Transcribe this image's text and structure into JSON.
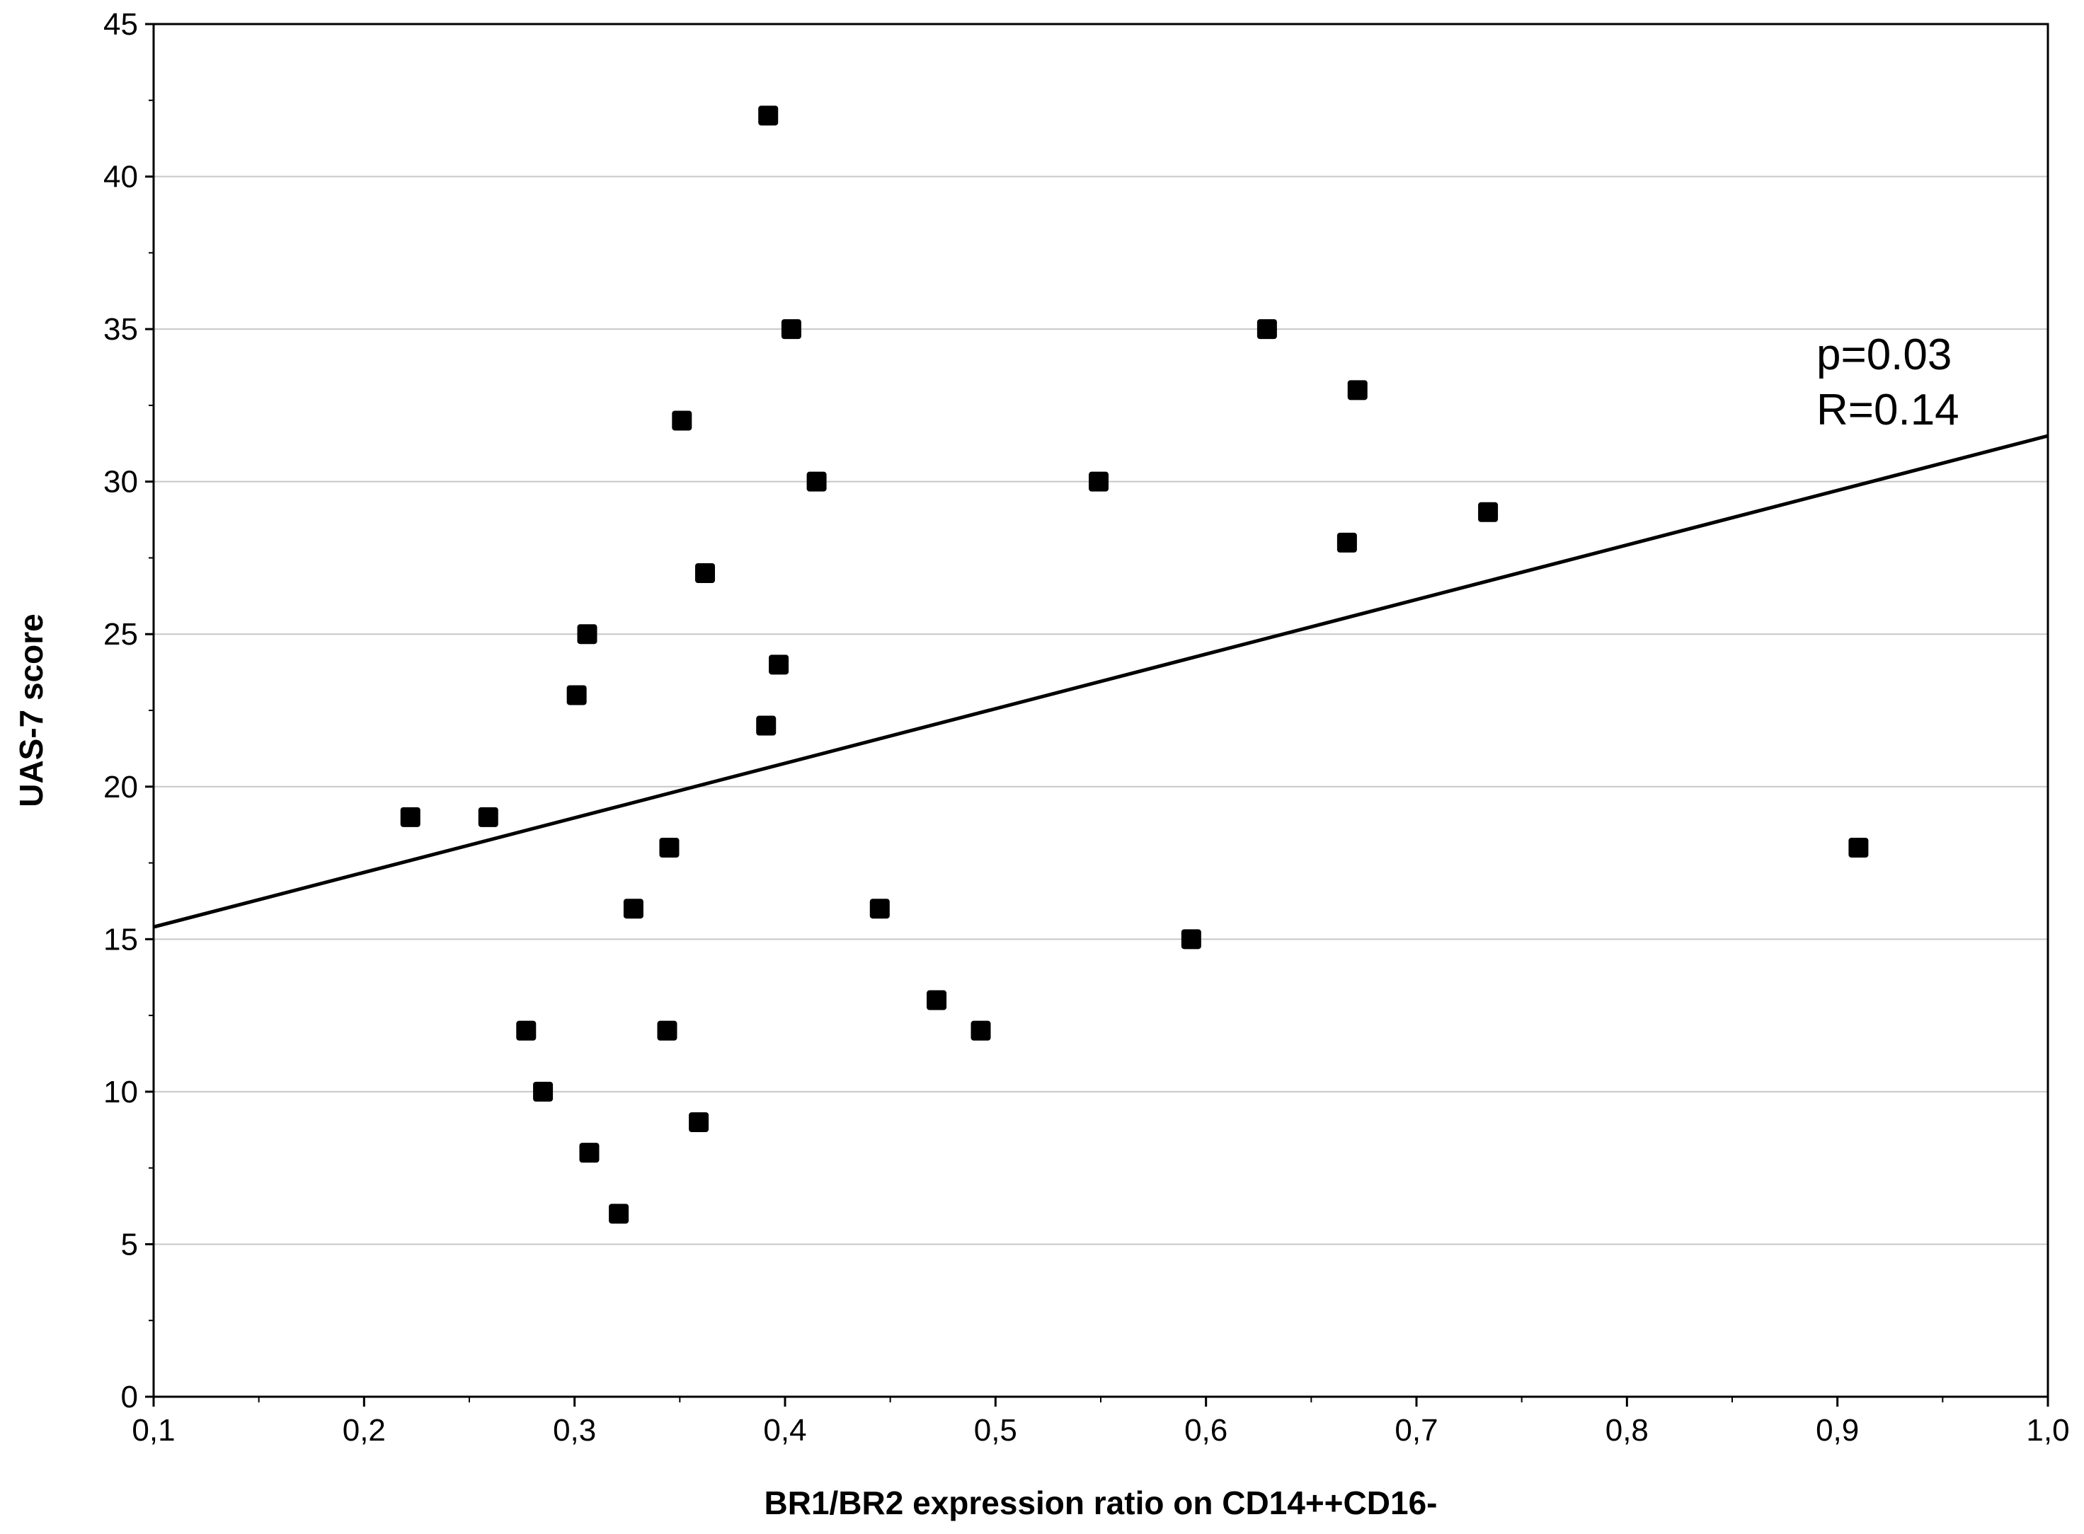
{
  "chart_data": {
    "type": "scatter",
    "xlabel": "BR1/BR2 expression ratio on CD14++CD16-",
    "ylabel": "UAS-7 score",
    "xlim": [
      0.1,
      1.0
    ],
    "ylim": [
      0,
      45
    ],
    "x_ticks": [
      0.1,
      0.2,
      0.3,
      0.4,
      0.5,
      0.6,
      0.7,
      0.8,
      0.9,
      1.0
    ],
    "x_tick_labels": [
      "0,1",
      "0,2",
      "0,3",
      "0,4",
      "0,5",
      "0,6",
      "0,7",
      "0,8",
      "0,9",
      "1,0"
    ],
    "y_ticks": [
      0,
      5,
      10,
      15,
      20,
      25,
      30,
      35,
      40,
      45
    ],
    "y_tick_labels": [
      "0",
      "5",
      "10",
      "15",
      "20",
      "25",
      "30",
      "35",
      "40",
      "45"
    ],
    "grid": "horizontal",
    "points": [
      {
        "x": 0.222,
        "y": 19
      },
      {
        "x": 0.259,
        "y": 19
      },
      {
        "x": 0.277,
        "y": 12
      },
      {
        "x": 0.285,
        "y": 10
      },
      {
        "x": 0.301,
        "y": 23
      },
      {
        "x": 0.306,
        "y": 25
      },
      {
        "x": 0.307,
        "y": 8
      },
      {
        "x": 0.321,
        "y": 6
      },
      {
        "x": 0.328,
        "y": 16
      },
      {
        "x": 0.344,
        "y": 12
      },
      {
        "x": 0.345,
        "y": 18
      },
      {
        "x": 0.351,
        "y": 32
      },
      {
        "x": 0.359,
        "y": 9
      },
      {
        "x": 0.362,
        "y": 27
      },
      {
        "x": 0.391,
        "y": 22
      },
      {
        "x": 0.392,
        "y": 42
      },
      {
        "x": 0.397,
        "y": 24
      },
      {
        "x": 0.403,
        "y": 35
      },
      {
        "x": 0.415,
        "y": 30
      },
      {
        "x": 0.445,
        "y": 16
      },
      {
        "x": 0.472,
        "y": 13
      },
      {
        "x": 0.493,
        "y": 12
      },
      {
        "x": 0.549,
        "y": 30
      },
      {
        "x": 0.593,
        "y": 15
      },
      {
        "x": 0.629,
        "y": 35
      },
      {
        "x": 0.667,
        "y": 28
      },
      {
        "x": 0.672,
        "y": 33
      },
      {
        "x": 0.734,
        "y": 29
      },
      {
        "x": 0.91,
        "y": 18
      }
    ],
    "regression_line": {
      "x": [
        0.1,
        1.0
      ],
      "y": [
        15.4,
        31.5
      ]
    },
    "annotations": [
      "p=0.03",
      "R=0.14"
    ]
  }
}
